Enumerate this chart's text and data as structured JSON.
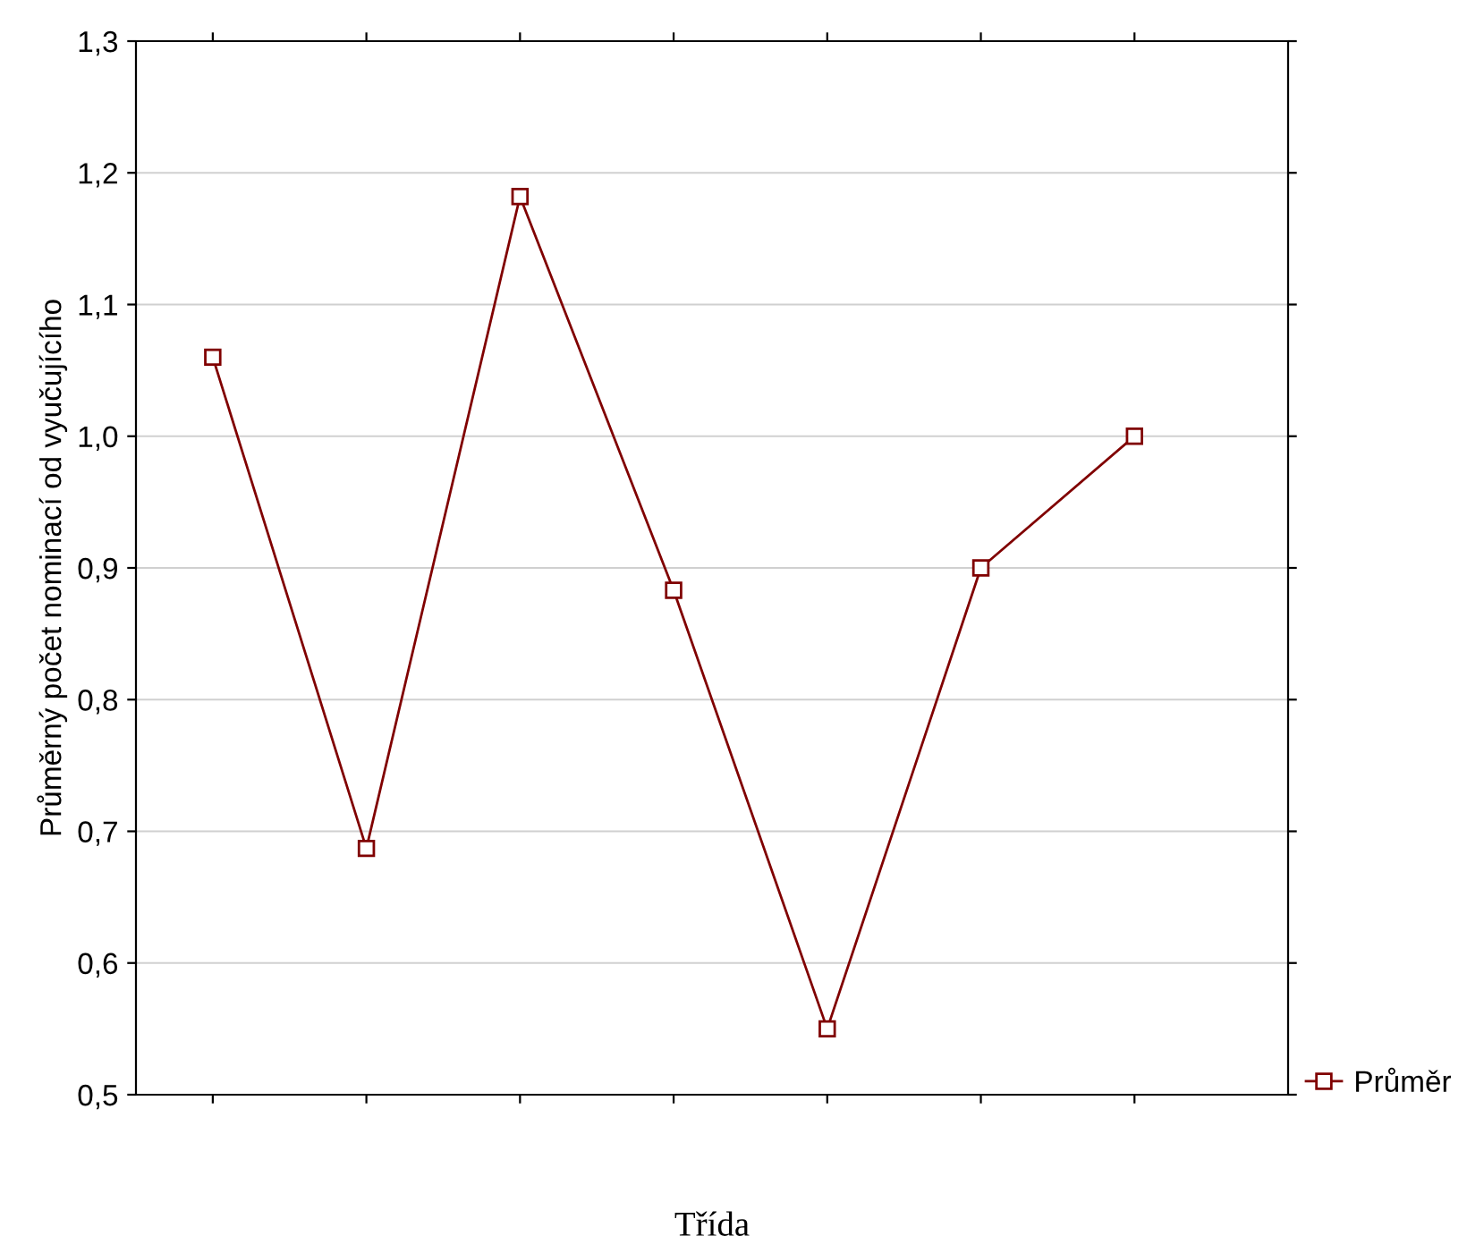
{
  "chart_data": {
    "type": "line",
    "xlabel": "Třída",
    "ylabel": "Průměrný počet nominací od vyučujícího",
    "categories": [
      null,
      null,
      null,
      null,
      null,
      null,
      null
    ],
    "series": [
      {
        "name": "Průměr",
        "color": "#800000",
        "values": [
          1.06,
          0.687,
          1.182,
          0.883,
          0.55,
          0.9,
          1.0
        ]
      }
    ],
    "ylim": [
      0.5,
      1.3
    ],
    "yticks": [
      {
        "value": 0.5,
        "label": "0,5"
      },
      {
        "value": 0.6,
        "label": "0,6"
      },
      {
        "value": 0.7,
        "label": "0,7"
      },
      {
        "value": 0.8,
        "label": "0,8"
      },
      {
        "value": 0.9,
        "label": "0,9"
      },
      {
        "value": 1.0,
        "label": "1,0"
      },
      {
        "value": 1.1,
        "label": "1,1"
      },
      {
        "value": 1.2,
        "label": "1,2"
      },
      {
        "value": 1.3,
        "label": "1,3"
      }
    ],
    "grid": "y",
    "legend": "bottom right",
    "marker": "square",
    "line_style": "solid"
  }
}
